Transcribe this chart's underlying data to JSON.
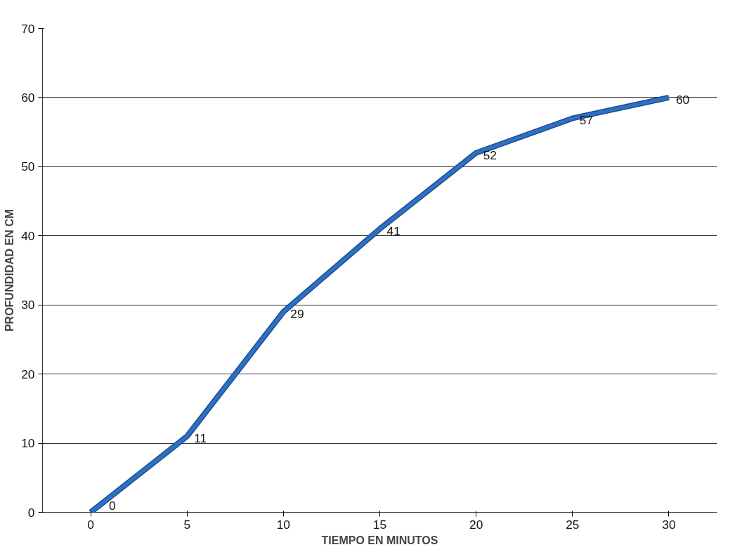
{
  "chart_data": {
    "type": "line",
    "xlabel": "TIEMPO EN MINUTOS",
    "ylabel": "PROFUNDIDAD EN CM",
    "categories": [
      "0",
      "5",
      "10",
      "15",
      "20",
      "25",
      "30"
    ],
    "series": [
      {
        "color": "#2f6fc4",
        "values": [
          0,
          11,
          29,
          41,
          52,
          57,
          60
        ]
      }
    ],
    "ylim": [
      0,
      70
    ],
    "yticks": [
      0,
      10,
      20,
      30,
      40,
      50,
      60,
      70
    ],
    "grid": "y",
    "data_labels": true,
    "marker": "none",
    "line_style": "solid"
  }
}
